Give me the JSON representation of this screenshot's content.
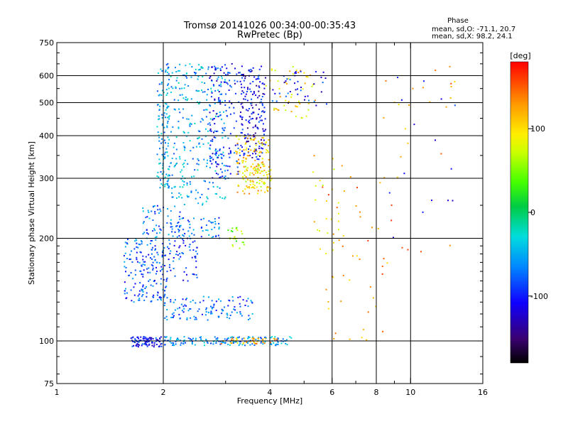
{
  "chart_data": {
    "type": "scatter",
    "title": "Tromsø 20141026 00:34:00-00:35:43",
    "subtitle": "RwPretec (Bp)",
    "xlabel": "Frequency [MHz]",
    "ylabel": "Stationary phase Virtual Height [km]",
    "x_scale": "log",
    "y_scale": "log",
    "xlim": [
      1,
      16
    ],
    "ylim": [
      75,
      750
    ],
    "x_ticks": [
      1,
      2,
      4,
      6,
      8,
      10,
      16
    ],
    "x_tick_labels": [
      "1",
      "2",
      "4",
      "6",
      "8",
      "10",
      "16"
    ],
    "x_minor_ticks": [
      3,
      5,
      7,
      9
    ],
    "y_ticks": [
      75,
      100,
      200,
      300,
      400,
      500,
      600,
      750
    ],
    "y_tick_labels": [
      "75",
      "100",
      "200",
      "300",
      "400",
      "500",
      "600",
      "750"
    ],
    "grid_x": [
      2,
      4,
      6,
      8,
      10
    ],
    "grid_y": [
      100,
      200,
      300,
      400,
      500,
      600
    ],
    "grid": true,
    "phase_stats": {
      "header": "Phase",
      "line_o": "mean, sd,O: -71.1, 20.7",
      "line_x": "mean, sd,X:  98.2, 24.1"
    },
    "colorbar": {
      "label": "[deg]",
      "range": [
        -180,
        180
      ],
      "ticks": [
        100,
        0,
        -100
      ],
      "tick_labels": [
        "100",
        "0",
        "-100"
      ],
      "colormap": "rainbow"
    },
    "clusters": [
      {
        "x": [
          1.62,
          1.98
        ],
        "y": [
          96,
          103
        ],
        "phase": -100,
        "n": 90
      },
      {
        "x": [
          2.0,
          4.6
        ],
        "y": [
          97,
          103
        ],
        "phase": -60,
        "n": 160
      },
      {
        "x": [
          2.9,
          4.2
        ],
        "y": [
          98,
          102
        ],
        "phase": 120,
        "n": 40
      },
      {
        "x": [
          1.55,
          2.05
        ],
        "y": [
          130,
          200
        ],
        "phase": -80,
        "n": 180
      },
      {
        "x": [
          1.75,
          2.25
        ],
        "y": [
          200,
          250
        ],
        "phase": -70,
        "n": 70
      },
      {
        "x": [
          2.0,
          3.6
        ],
        "y": [
          115,
          135
        ],
        "phase": -75,
        "n": 120
      },
      {
        "x": [
          2.05,
          2.5
        ],
        "y": [
          150,
          200
        ],
        "phase": -90,
        "n": 60
      },
      {
        "x": [
          2.2,
          2.9
        ],
        "y": [
          200,
          230
        ],
        "phase": -70,
        "n": 50
      },
      {
        "x": [
          3.05,
          3.4
        ],
        "y": [
          185,
          215
        ],
        "phase": 50,
        "n": 25
      },
      {
        "x": [
          1.92,
          2.08
        ],
        "y": [
          280,
          650
        ],
        "phase": -55,
        "n": 130
      },
      {
        "x": [
          2.08,
          3.0
        ],
        "y": [
          250,
          650
        ],
        "phase": -50,
        "n": 280
      },
      {
        "x": [
          2.7,
          3.3
        ],
        "y": [
          300,
          650
        ],
        "phase": -100,
        "n": 150
      },
      {
        "x": [
          3.3,
          3.9
        ],
        "y": [
          340,
          640
        ],
        "phase": -110,
        "n": 180
      },
      {
        "x": [
          3.2,
          4.0
        ],
        "y": [
          270,
          400
        ],
        "phase": 110,
        "n": 130
      },
      {
        "x": [
          3.4,
          4.1
        ],
        "y": [
          280,
          330
        ],
        "phase": 90,
        "n": 50
      },
      {
        "x": [
          3.9,
          5.4
        ],
        "y": [
          450,
          640
        ],
        "phase": 100,
        "n": 50
      },
      {
        "x": [
          4.0,
          5.8
        ],
        "y": [
          490,
          620
        ],
        "phase": -100,
        "n": 40
      },
      {
        "x": [
          5.3,
          6.3
        ],
        "y": [
          180,
          350
        ],
        "phase": 100,
        "n": 25
      },
      {
        "x": [
          5.6,
          8.5
        ],
        "y": [
          100,
          330
        ],
        "phase": 130,
        "n": 40
      },
      {
        "x": [
          7.5,
          13.5
        ],
        "y": [
          150,
          650
        ],
        "phase": 130,
        "n": 30
      },
      {
        "x": [
          8.5,
          13.5
        ],
        "y": [
          200,
          650
        ],
        "phase": -110,
        "n": 15
      }
    ]
  }
}
